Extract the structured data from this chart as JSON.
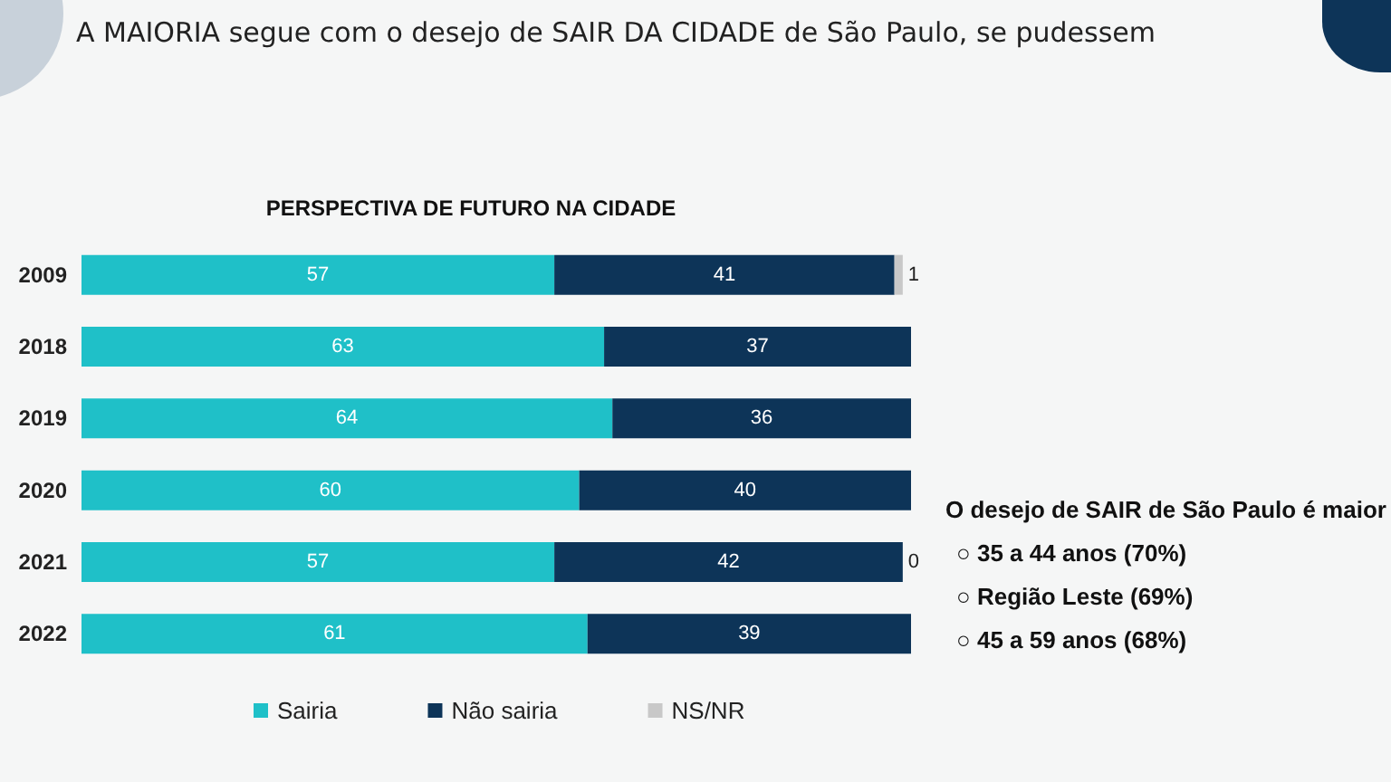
{
  "chart_data": {
    "type": "bar",
    "orientation": "horizontal",
    "stacked": true,
    "title": "A MAIORIA segue com o desejo de SAIR DA CIDADE de São Paulo, se pudessem",
    "subtitle": "PERSPECTIVA DE FUTURO NA CIDADE",
    "categories": [
      "2009",
      "2018",
      "2019",
      "2020",
      "2021",
      "2022"
    ],
    "series": [
      {
        "name": "Sairia",
        "color": "#1fc0c8",
        "values": [
          57,
          63,
          64,
          60,
          57,
          61
        ]
      },
      {
        "name": "Não sairia",
        "color": "#0d3458",
        "values": [
          41,
          37,
          36,
          40,
          42,
          39
        ]
      },
      {
        "name": "NS/NR",
        "color": "#c8c8c8",
        "values": [
          1,
          null,
          null,
          null,
          0,
          null
        ]
      }
    ],
    "data_labels": true,
    "legend": "bottom",
    "annotations": [
      "O desejo de SAIR de São Paulo é maior",
      "○ 35 a 44 anos (70%)",
      "○ Região Leste (69%)",
      "○ 45 a 59 anos (68%)"
    ]
  }
}
